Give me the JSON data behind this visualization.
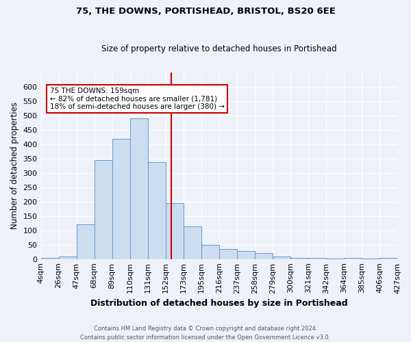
{
  "title": "75, THE DOWNS, PORTISHEAD, BRISTOL, BS20 6EE",
  "subtitle": "Size of property relative to detached houses in Portishead",
  "xlabel": "Distribution of detached houses by size in Portishead",
  "ylabel": "Number of detached properties",
  "bar_labels": [
    "4sqm",
    "26sqm",
    "47sqm",
    "68sqm",
    "89sqm",
    "110sqm",
    "131sqm",
    "152sqm",
    "173sqm",
    "195sqm",
    "216sqm",
    "237sqm",
    "258sqm",
    "279sqm",
    "300sqm",
    "321sqm",
    "342sqm",
    "364sqm",
    "385sqm",
    "406sqm",
    "427sqm"
  ],
  "bar_values": [
    5,
    8,
    122,
    345,
    420,
    490,
    337,
    195,
    113,
    50,
    35,
    27,
    20,
    9,
    5,
    3,
    2,
    5,
    2,
    3
  ],
  "bar_color": "#ccddf0",
  "bar_edge_color": "#6699cc",
  "vline_color": "#cc0000",
  "annotation_text": "75 THE DOWNS: 159sqm\n← 82% of detached houses are smaller (1,781)\n18% of semi-detached houses are larger (380) →",
  "annotation_box_color": "#ffffff",
  "annotation_box_edge": "#cc0000",
  "ylim": [
    0,
    650
  ],
  "yticks": [
    0,
    50,
    100,
    150,
    200,
    250,
    300,
    350,
    400,
    450,
    500,
    550,
    600
  ],
  "footer": "Contains HM Land Registry data © Crown copyright and database right 2024.\nContains public sector information licensed under the Open Government Licence v3.0.",
  "background_color": "#eef2f8",
  "grid_color": "#ffffff"
}
